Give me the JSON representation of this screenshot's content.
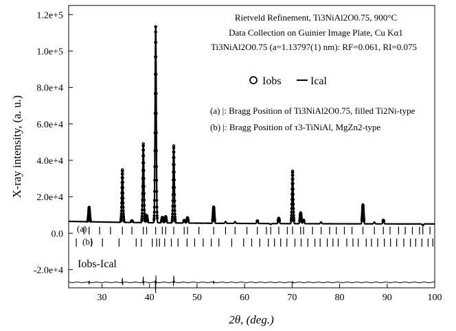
{
  "chart_data": {
    "type": "line",
    "xlabel": "2θ, (deg.)",
    "ylabel": "X-ray intensity, (a. u.)",
    "xlim": [
      23,
      100
    ],
    "ylim": [
      -30000,
      125000
    ],
    "x_ticks": [
      30,
      40,
      50,
      60,
      70,
      80,
      90,
      100
    ],
    "y_ticks": [
      -20000,
      0,
      20000,
      40000,
      60000,
      80000,
      100000,
      120000
    ],
    "y_tick_labels": [
      "-2.0e+4",
      "0.0",
      "2.0e+4",
      "4.0e+4",
      "6.0e+4",
      "8.0e+4",
      "1.0e+5",
      "1.2e+5"
    ],
    "annotations": {
      "title": "Rietveld Refinement,  Ti3NiAl2O0.75, 900°C",
      "line2": "Data Collection on Guinier Image Plate, Cu Kα1",
      "line3": "Ti3NiAl2O0.75 (a=1.13797(1) nm): RF=0.061, RI=0.075",
      "legend_obs": "Iobs",
      "legend_cal": "Ical",
      "bragg_a": "(a) |: Bragg Position of Ti3NiAl2O0.75, filled Ti2Ni-type",
      "bragg_b": "(b) |: Bragg Position of τ3-TiNiAl, MgZn2-type",
      "row_a_label": "(a)",
      "row_b_label": "(b)",
      "diff_label": "Iobs-Ical"
    },
    "legend_placement": "top-right",
    "baseline": 5000,
    "diff_offset": -27000,
    "peaks": [
      {
        "x": 27.3,
        "y": 13000
      },
      {
        "x": 34.3,
        "y": 34000
      },
      {
        "x": 36.3,
        "y": 6000
      },
      {
        "x": 38.7,
        "y": 48500
      },
      {
        "x": 39.4,
        "y": 9000
      },
      {
        "x": 41.3,
        "y": 113000
      },
      {
        "x": 42.7,
        "y": 8000
      },
      {
        "x": 43.4,
        "y": 8500
      },
      {
        "x": 45.1,
        "y": 47500
      },
      {
        "x": 47.3,
        "y": 6500
      },
      {
        "x": 48.0,
        "y": 8000
      },
      {
        "x": 53.5,
        "y": 14000
      },
      {
        "x": 56.0,
        "y": 6000
      },
      {
        "x": 58.0,
        "y": 6000
      },
      {
        "x": 62.7,
        "y": 6500
      },
      {
        "x": 65.5,
        "y": 4500
      },
      {
        "x": 67.2,
        "y": 8000
      },
      {
        "x": 70.1,
        "y": 34000
      },
      {
        "x": 71.8,
        "y": 11000
      },
      {
        "x": 72.4,
        "y": 7000
      },
      {
        "x": 76.1,
        "y": 6000
      },
      {
        "x": 84.9,
        "y": 15500
      },
      {
        "x": 87.3,
        "y": 6000
      },
      {
        "x": 89.2,
        "y": 7000
      },
      {
        "x": 97.5,
        "y": 4000
      }
    ],
    "bragg_positions_a": [
      26.2,
      27.3,
      29.5,
      31.8,
      34.3,
      36.3,
      38.7,
      39.4,
      41.3,
      42.7,
      43.4,
      45.1,
      47.3,
      48.0,
      50.4,
      53.5,
      56.0,
      58.0,
      60.5,
      62.7,
      64.6,
      65.5,
      67.2,
      69.0,
      70.1,
      71.8,
      72.4,
      74.3,
      76.1,
      77.9,
      79.3,
      81.0,
      82.6,
      84.9,
      87.3,
      89.2,
      90.6,
      92.4,
      93.8,
      95.3,
      96.8,
      97.5,
      99.0
    ],
    "bragg_positions_b": [
      24.6,
      27.8,
      30.1,
      33.6,
      37.2,
      38.3,
      40.6,
      41.5,
      42.1,
      43.2,
      44.6,
      46.0,
      47.9,
      49.5,
      51.3,
      53.0,
      54.6,
      57.3,
      59.8,
      61.5,
      63.2,
      65.0,
      66.3,
      67.6,
      68.9,
      70.6,
      71.9,
      73.3,
      74.8,
      75.9,
      77.4,
      78.6,
      79.7,
      81.5,
      82.8,
      83.9,
      85.6,
      86.7,
      88.0,
      89.4,
      90.7,
      92.0,
      93.5,
      94.9,
      96.0,
      97.3,
      98.6,
      99.6
    ]
  }
}
